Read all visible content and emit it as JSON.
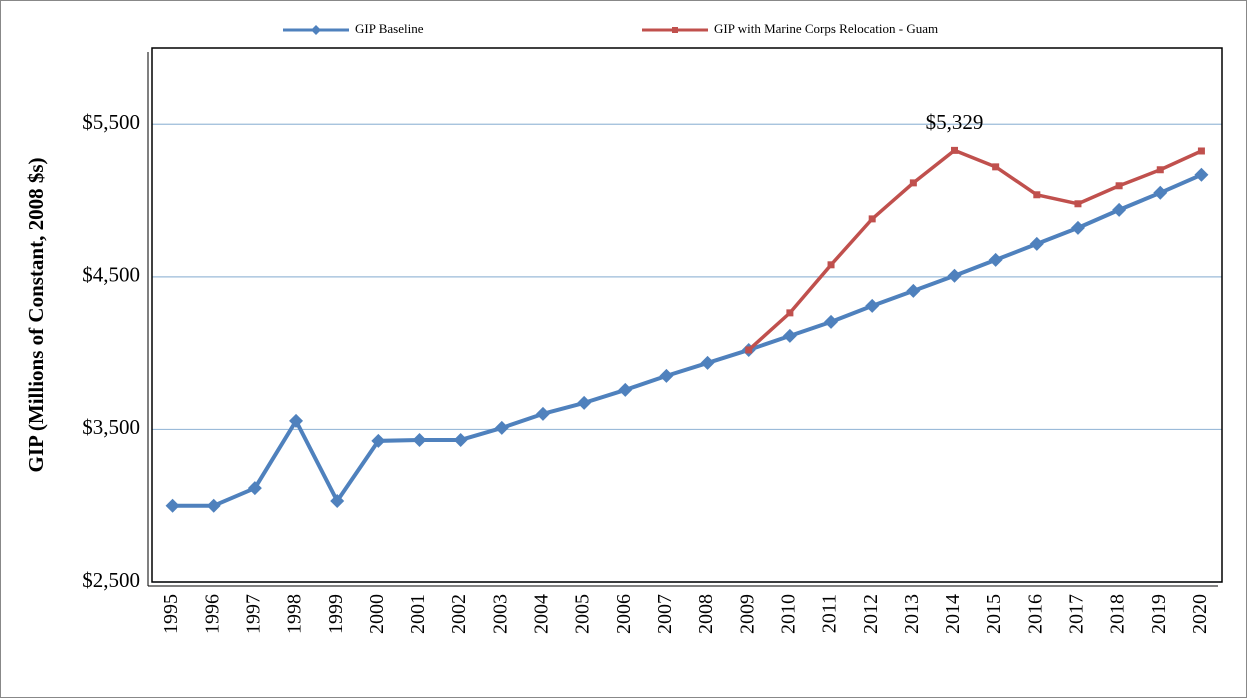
{
  "chart_data": {
    "type": "line",
    "y_label": "GIP (Millions of Constant, 2008 $s)",
    "categories": [
      "1995",
      "1996",
      "1997",
      "1998",
      "1999",
      "2000",
      "2001",
      "2002",
      "2003",
      "2004",
      "2005",
      "2006",
      "2007",
      "2008",
      "2009",
      "2010",
      "2011",
      "2012",
      "2013",
      "2014",
      "2015",
      "2016",
      "2017",
      "2018",
      "2019",
      "2020"
    ],
    "series": [
      {
        "name": "GIP Baseline",
        "color": "#4f81bd",
        "marker": "diamond",
        "values": [
          3000,
          3000,
          3115,
          3556,
          3031,
          3425,
          3431,
          3431,
          3510,
          3602,
          3674,
          3759,
          3851,
          3936,
          4021,
          4113,
          4205,
          4310,
          4408,
          4507,
          4611,
          4716,
          4821,
          4939,
          5051,
          5169
        ]
      },
      {
        "name": "GIP with Marine Corps Relocation - Guam",
        "color": "#c0504d",
        "marker": "square",
        "values": [
          null,
          null,
          null,
          null,
          null,
          null,
          null,
          null,
          null,
          null,
          null,
          null,
          null,
          null,
          4021,
          4264,
          4579,
          4880,
          5116,
          5329,
          5221,
          5038,
          4979,
          5097,
          5202,
          5325
        ],
        "value_labels": [
          null,
          null,
          null,
          null,
          null,
          null,
          null,
          null,
          null,
          null,
          null,
          null,
          null,
          null,
          null,
          null,
          null,
          null,
          null,
          "$5,329",
          null,
          null,
          null,
          null,
          null,
          null
        ]
      }
    ],
    "annotations": [
      "`"
    ],
    "ylim": [
      2500,
      6000
    ],
    "yticks": [
      {
        "value": 2500,
        "label": "$2,500"
      },
      {
        "value": 3500,
        "label": "$3,500"
      },
      {
        "value": 4500,
        "label": "$4,500"
      },
      {
        "value": 5500,
        "label": "$5,500"
      }
    ],
    "grid": true,
    "legend": "top"
  }
}
